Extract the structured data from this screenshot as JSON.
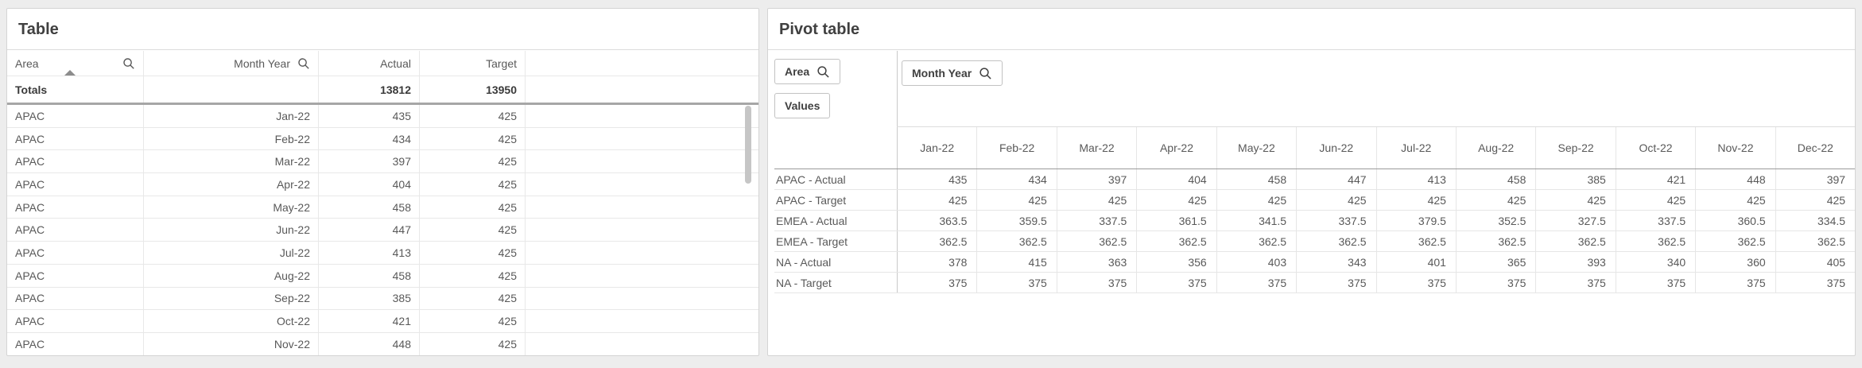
{
  "colors": {
    "page_background": "#ededed",
    "panel_background": "#ffffff",
    "panel_border": "#d4d4d4",
    "grid_line": "#e8e8e8",
    "totals_separator": "#a6a6a6",
    "pivot_header_separator": "#9a9a9a",
    "title_text": "#404040",
    "body_text": "#595959",
    "scrollbar_thumb": "#c6c6c6"
  },
  "icons": {
    "search": "magnifying-glass",
    "sort_ascending": "triangle-up"
  },
  "left_panel": {
    "title": "Table",
    "columns": [
      {
        "label": "Area",
        "align": "left",
        "searchable": true,
        "sorted": "ascending"
      },
      {
        "label": "Month Year",
        "align": "right",
        "searchable": true
      },
      {
        "label": "Actual",
        "align": "right"
      },
      {
        "label": "Target",
        "align": "right"
      },
      {
        "label": "",
        "align": "left"
      }
    ],
    "totals": {
      "label": "Totals",
      "actual": "13812",
      "target": "13950"
    },
    "rows": [
      {
        "area": "APAC",
        "month": "Jan-22",
        "actual": "435",
        "target": "425"
      },
      {
        "area": "APAC",
        "month": "Feb-22",
        "actual": "434",
        "target": "425"
      },
      {
        "area": "APAC",
        "month": "Mar-22",
        "actual": "397",
        "target": "425"
      },
      {
        "area": "APAC",
        "month": "Apr-22",
        "actual": "404",
        "target": "425"
      },
      {
        "area": "APAC",
        "month": "May-22",
        "actual": "458",
        "target": "425"
      },
      {
        "area": "APAC",
        "month": "Jun-22",
        "actual": "447",
        "target": "425"
      },
      {
        "area": "APAC",
        "month": "Jul-22",
        "actual": "413",
        "target": "425"
      },
      {
        "area": "APAC",
        "month": "Aug-22",
        "actual": "458",
        "target": "425"
      },
      {
        "area": "APAC",
        "month": "Sep-22",
        "actual": "385",
        "target": "425"
      },
      {
        "area": "APAC",
        "month": "Oct-22",
        "actual": "421",
        "target": "425"
      },
      {
        "area": "APAC",
        "month": "Nov-22",
        "actual": "448",
        "target": "425"
      }
    ]
  },
  "pivot_panel": {
    "title": "Pivot table",
    "row_dimension_label": "Area",
    "values_label": "Values",
    "column_dimension_label": "Month Year",
    "column_headers": [
      "Jan-22",
      "Feb-22",
      "Mar-22",
      "Apr-22",
      "May-22",
      "Jun-22",
      "Jul-22",
      "Aug-22",
      "Sep-22",
      "Oct-22",
      "Nov-22",
      "Dec-22"
    ],
    "rows": [
      {
        "label": "APAC - Actual",
        "values": [
          "435",
          "434",
          "397",
          "404",
          "458",
          "447",
          "413",
          "458",
          "385",
          "421",
          "448",
          "397"
        ]
      },
      {
        "label": "APAC - Target",
        "values": [
          "425",
          "425",
          "425",
          "425",
          "425",
          "425",
          "425",
          "425",
          "425",
          "425",
          "425",
          "425"
        ]
      },
      {
        "label": "EMEA - Actual",
        "values": [
          "363.5",
          "359.5",
          "337.5",
          "361.5",
          "341.5",
          "337.5",
          "379.5",
          "352.5",
          "327.5",
          "337.5",
          "360.5",
          "334.5"
        ]
      },
      {
        "label": "EMEA - Target",
        "values": [
          "362.5",
          "362.5",
          "362.5",
          "362.5",
          "362.5",
          "362.5",
          "362.5",
          "362.5",
          "362.5",
          "362.5",
          "362.5",
          "362.5"
        ]
      },
      {
        "label": "NA - Actual",
        "values": [
          "378",
          "415",
          "363",
          "356",
          "403",
          "343",
          "401",
          "365",
          "393",
          "340",
          "360",
          "405"
        ]
      },
      {
        "label": "NA - Target",
        "values": [
          "375",
          "375",
          "375",
          "375",
          "375",
          "375",
          "375",
          "375",
          "375",
          "375",
          "375",
          "375"
        ]
      }
    ]
  }
}
